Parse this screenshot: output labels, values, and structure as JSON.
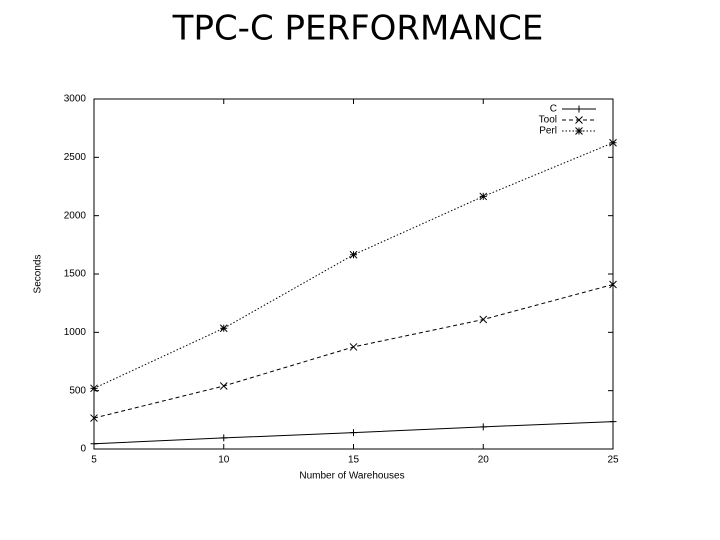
{
  "chart_data": {
    "type": "line",
    "title": "TPC-C PERFORMANCE",
    "x_label": "Number of Warehouses",
    "y_label": "Seconds",
    "x": [
      5,
      10,
      15,
      20,
      25
    ],
    "series": [
      {
        "name": "C",
        "color": "#000000",
        "values": [
          45,
          95,
          140,
          190,
          235
        ]
      },
      {
        "name": "Tool",
        "color": "#000000",
        "values": [
          265,
          540,
          875,
          1110,
          1410
        ]
      },
      {
        "name": "Perl",
        "color": "#000000",
        "values": [
          520,
          1035,
          1665,
          2165,
          2625
        ]
      }
    ],
    "xlim": [
      5,
      25
    ],
    "xticks": [
      5,
      10,
      15,
      20,
      25
    ],
    "ylim": [
      0,
      3000
    ],
    "yticks": [
      0,
      500,
      1000,
      1500,
      2000,
      2500,
      3000
    ],
    "legend": "upper right"
  }
}
